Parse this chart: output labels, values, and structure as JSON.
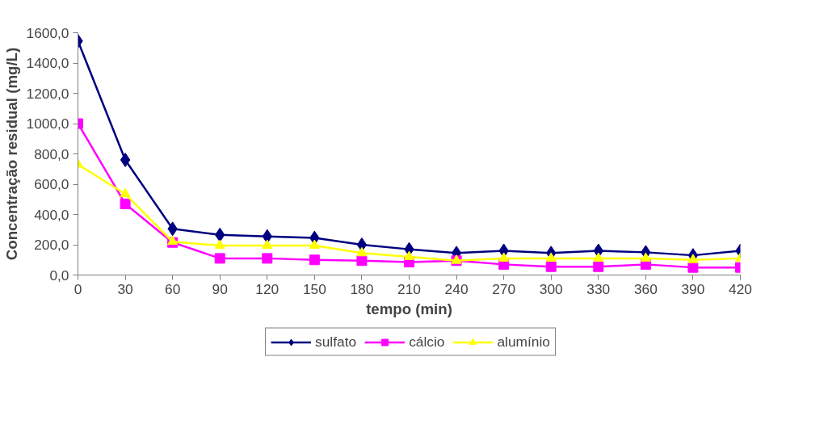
{
  "chart_data": {
    "type": "line",
    "xlabel": "tempo (min)",
    "ylabel": "Concentração residual (mg/L)",
    "x": [
      0,
      30,
      60,
      90,
      120,
      150,
      180,
      210,
      240,
      270,
      300,
      330,
      360,
      390,
      420
    ],
    "series": [
      {
        "name": "sulfato",
        "color": "#000080",
        "marker": "diamond",
        "values": [
          1545,
          760,
          305,
          265,
          255,
          245,
          200,
          170,
          145,
          160,
          145,
          160,
          150,
          130,
          160
        ]
      },
      {
        "name": "cálcio",
        "color": "#ff00ff",
        "marker": "square",
        "values": [
          1000,
          470,
          215,
          110,
          110,
          100,
          95,
          85,
          95,
          70,
          55,
          55,
          70,
          50,
          50
        ]
      },
      {
        "name": "alumínio",
        "color": "#ffff00",
        "marker": "triangle",
        "values": [
          730,
          535,
          220,
          195,
          195,
          195,
          145,
          120,
          95,
          110,
          110,
          110,
          110,
          100,
          110
        ]
      }
    ],
    "xlim": [
      0,
      420
    ],
    "ylim": [
      0,
      1600
    ],
    "xticks": [
      0,
      30,
      60,
      90,
      120,
      150,
      180,
      210,
      240,
      270,
      300,
      330,
      360,
      390,
      420
    ],
    "yticks": [
      {
        "value": 0,
        "label": "0,0"
      },
      {
        "value": 200,
        "label": "200,0"
      },
      {
        "value": 400,
        "label": "400,0"
      },
      {
        "value": 600,
        "label": "600,0"
      },
      {
        "value": 800,
        "label": "800,0"
      },
      {
        "value": 1000,
        "label": "1000,0"
      },
      {
        "value": 1200,
        "label": "1200,0"
      },
      {
        "value": 1400,
        "label": "1400,0"
      },
      {
        "value": 1600,
        "label": "1600,0"
      }
    ],
    "grid": false,
    "legend": "bottom",
    "line_style": "solid"
  }
}
